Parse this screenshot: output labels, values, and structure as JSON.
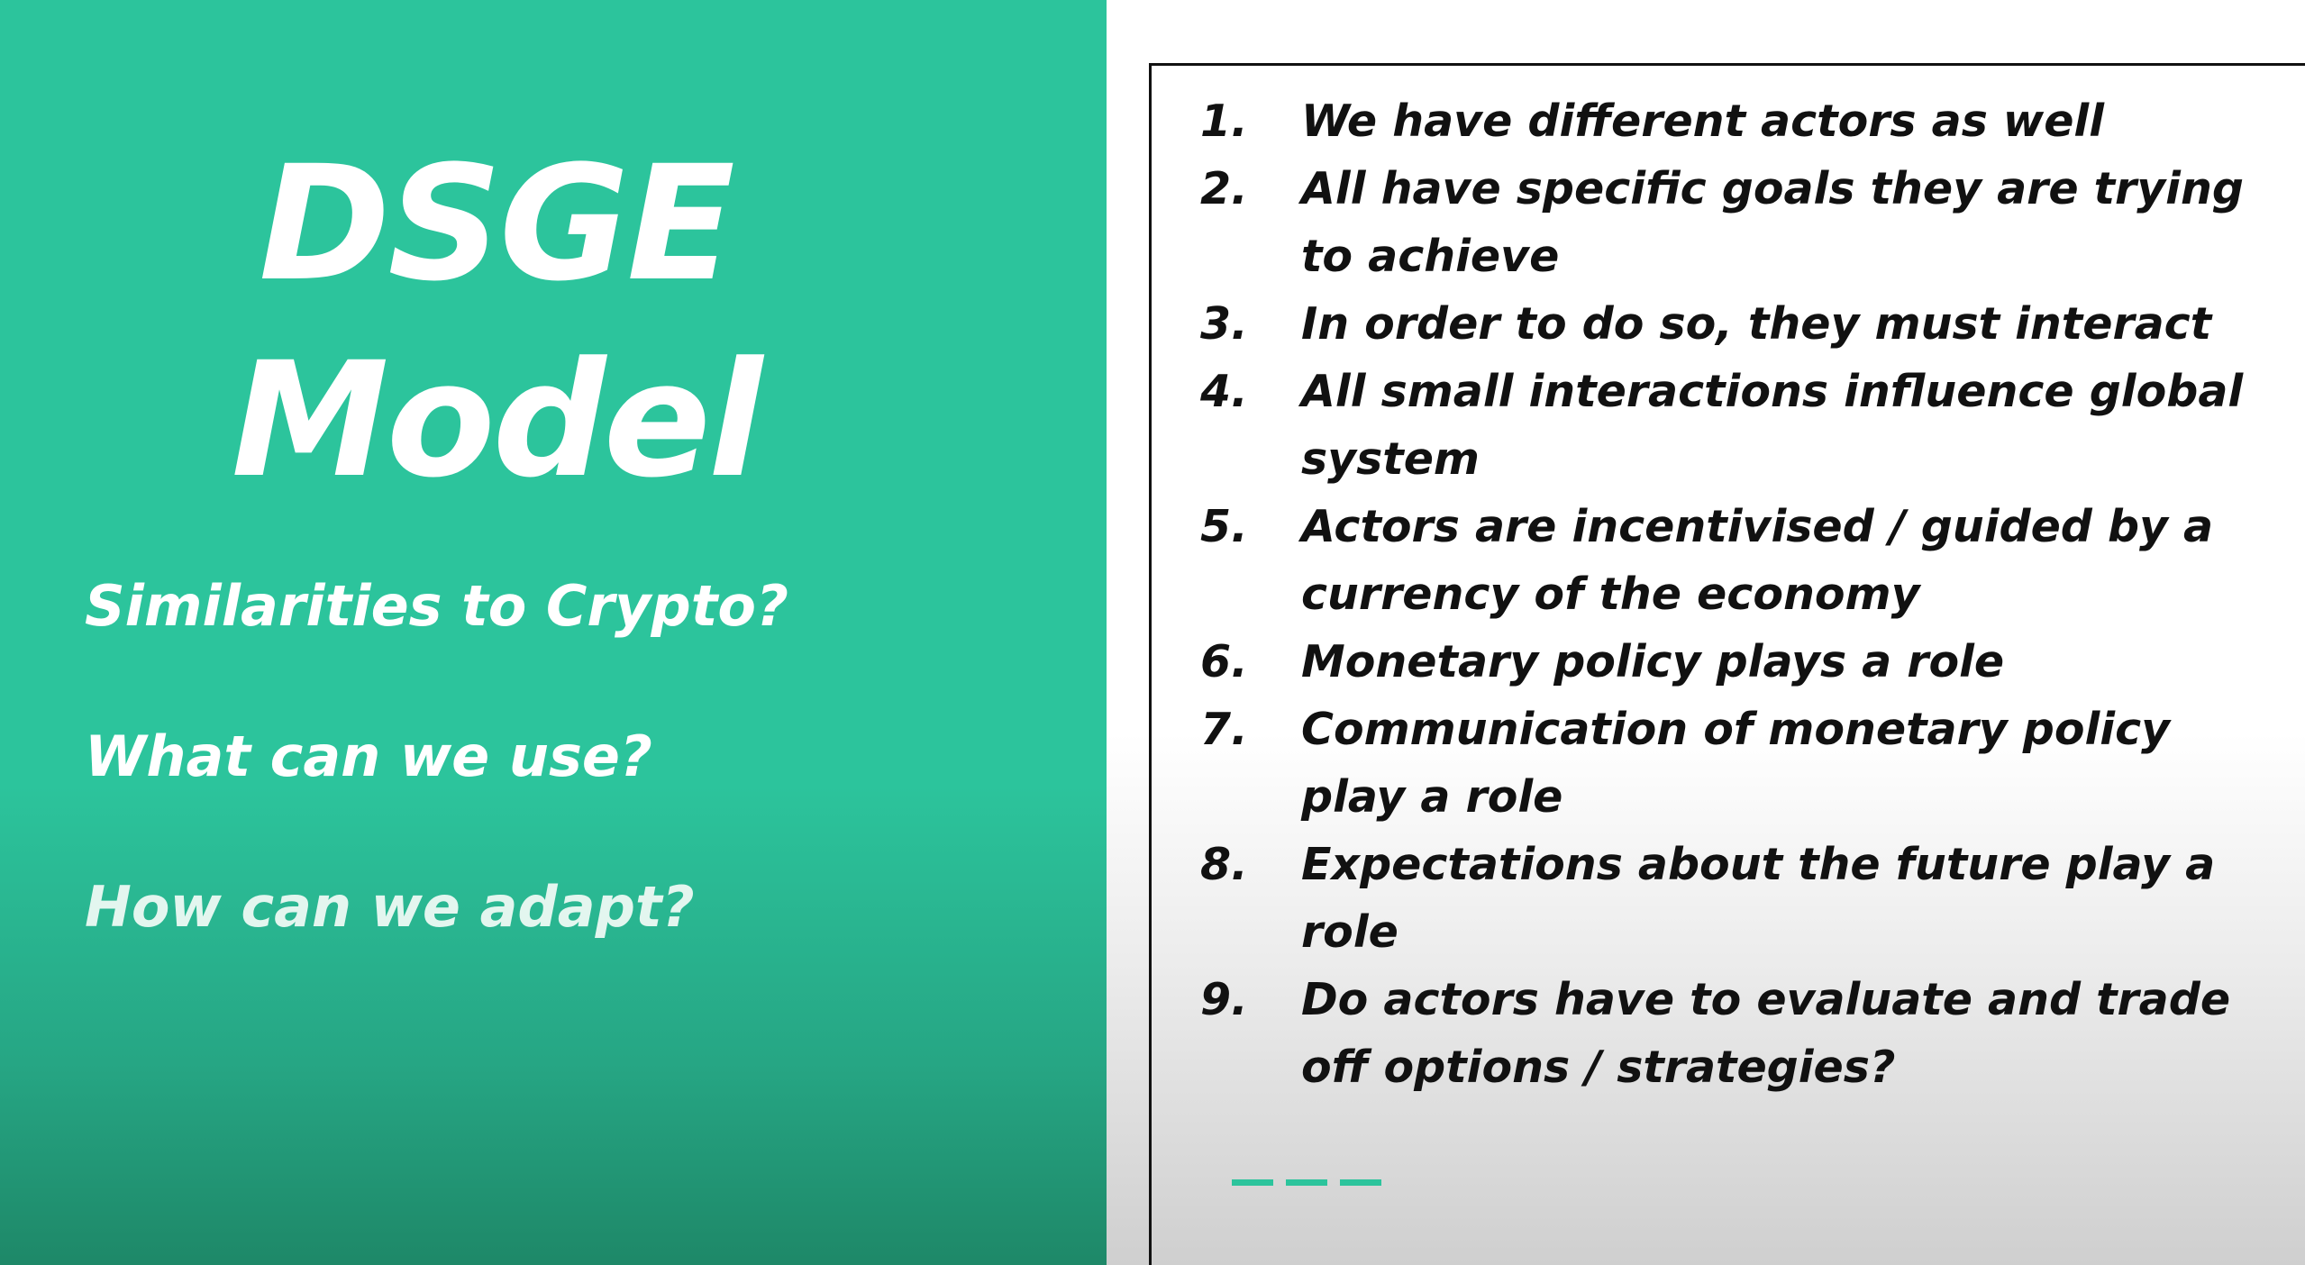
{
  "colors": {
    "accent": "#2cc49c",
    "text_dark": "#111111",
    "text_light": "#ffffff"
  },
  "title": {
    "line1": "DSGE",
    "line2": "Model"
  },
  "questions": [
    "Similarities to Crypto?",
    "What can we use?",
    "How can we adapt?"
  ],
  "points": [
    {
      "num": "1.",
      "text": "We have different actors as well"
    },
    {
      "num": "2.",
      "text": "All have specific goals they are trying to achieve"
    },
    {
      "num": "3.",
      "text": "In order to do so, they must interact"
    },
    {
      "num": "4.",
      "text": "All small interactions influence global system"
    },
    {
      "num": "5.",
      "text": "Actors are incentivised / guided by a currency of the economy"
    },
    {
      "num": "6.",
      "text": "Monetary policy plays a role"
    },
    {
      "num": "7.",
      "text": "Communication of monetary policy play a role"
    },
    {
      "num": "8.",
      "text": "Expectations about the future play a role"
    },
    {
      "num": "9.",
      "text": "Do actors have to evaluate and trade off options / strategies?"
    }
  ]
}
